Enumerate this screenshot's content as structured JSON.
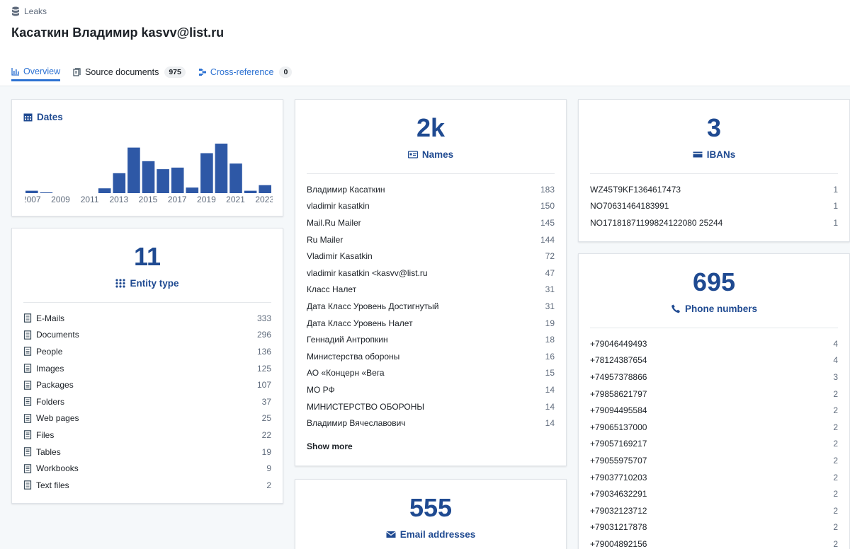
{
  "breadcrumb": {
    "label": "Leaks"
  },
  "page_title": "Касаткин Владимир kasvv@list.ru",
  "tabs": {
    "overview": "Overview",
    "source_documents": "Source documents",
    "source_documents_count": "975",
    "cross_reference": "Cross-reference",
    "cross_reference_count": "0"
  },
  "colors": {
    "accent": "#2d72d2",
    "stat": "#1f4a91",
    "bar": "#2e58a6"
  },
  "dates": {
    "title": "Dates",
    "chart_data": {
      "type": "bar",
      "categories": [
        "2007",
        "2008",
        "2009",
        "2010",
        "2011",
        "2012",
        "2013",
        "2014",
        "2015",
        "2016",
        "2017",
        "2018",
        "2019",
        "2020",
        "2021",
        "2022",
        "2023"
      ],
      "values": [
        3,
        1,
        0,
        0,
        0,
        6,
        25,
        57,
        40,
        30,
        32,
        7,
        50,
        62,
        37,
        3,
        10
      ],
      "tick_labels": [
        "2007",
        "2009",
        "2011",
        "2013",
        "2015",
        "2017",
        "2019",
        "2021",
        "2023"
      ],
      "xlabel": "",
      "ylabel": "",
      "grid": false
    }
  },
  "entity_types": {
    "count": "11",
    "label": "Entity type",
    "items": [
      {
        "icon": "email-icon",
        "label": "E-Mails",
        "count": "333"
      },
      {
        "icon": "document-icon",
        "label": "Documents",
        "count": "296"
      },
      {
        "icon": "person-icon",
        "label": "People",
        "count": "136"
      },
      {
        "icon": "image-icon",
        "label": "Images",
        "count": "125"
      },
      {
        "icon": "package-icon",
        "label": "Packages",
        "count": "107"
      },
      {
        "icon": "folder-icon",
        "label": "Folders",
        "count": "37"
      },
      {
        "icon": "web-page-icon",
        "label": "Web pages",
        "count": "25"
      },
      {
        "icon": "files-icon",
        "label": "Files",
        "count": "22"
      },
      {
        "icon": "table-icon",
        "label": "Tables",
        "count": "19"
      },
      {
        "icon": "workbook-icon",
        "label": "Workbooks",
        "count": "9"
      },
      {
        "icon": "text-file-icon",
        "label": "Text files",
        "count": "2"
      }
    ]
  },
  "names": {
    "count": "2k",
    "label": "Names",
    "show_more": "Show more",
    "items": [
      {
        "label": "Владимир Касаткин",
        "count": "183"
      },
      {
        "label": "vladimir kasatkin",
        "count": "150"
      },
      {
        "label": "Mail.Ru Mailer",
        "count": "145"
      },
      {
        "label": "Ru Mailer",
        "count": "144"
      },
      {
        "label": "Vladimir Kasatkin",
        "count": "72"
      },
      {
        "label": "vladimir kasatkin <kasvv@list.ru",
        "count": "47"
      },
      {
        "label": "Класс Налет",
        "count": "31"
      },
      {
        "label": "Дата Класс Уровень Достигнутый",
        "count": "31"
      },
      {
        "label": "Дата Класс Уровень Налет",
        "count": "19"
      },
      {
        "label": "Геннадий Антропкин",
        "count": "18"
      },
      {
        "label": "Министерства обороны",
        "count": "16"
      },
      {
        "label": "АО «Концерн «Вега",
        "count": "15"
      },
      {
        "label": "МО РФ",
        "count": "14"
      },
      {
        "label": "МИНИСТЕРСТВО ОБОРОНЫ",
        "count": "14"
      },
      {
        "label": "Владимир Вячеславович",
        "count": "14"
      }
    ]
  },
  "emails": {
    "count": "555",
    "label": "Email addresses"
  },
  "ibans": {
    "count": "3",
    "label": "IBANs",
    "items": [
      {
        "label": "WZ45T9KF1364617473",
        "count": "1"
      },
      {
        "label": "NO70631464183991",
        "count": "1"
      },
      {
        "label": "NO17181871199824122080 25244",
        "count": "1"
      }
    ]
  },
  "phones": {
    "count": "695",
    "label": "Phone numbers",
    "items": [
      {
        "label": "+79046449493",
        "count": "4"
      },
      {
        "label": "+78124387654",
        "count": "4"
      },
      {
        "label": "+74957378866",
        "count": "3"
      },
      {
        "label": "+79858621797",
        "count": "2"
      },
      {
        "label": "+79094495584",
        "count": "2"
      },
      {
        "label": "+79065137000",
        "count": "2"
      },
      {
        "label": "+79057169217",
        "count": "2"
      },
      {
        "label": "+79055975707",
        "count": "2"
      },
      {
        "label": "+79037710203",
        "count": "2"
      },
      {
        "label": "+79034632291",
        "count": "2"
      },
      {
        "label": "+79032123712",
        "count": "2"
      },
      {
        "label": "+79031217878",
        "count": "2"
      },
      {
        "label": "+79004892156",
        "count": "2"
      }
    ]
  }
}
